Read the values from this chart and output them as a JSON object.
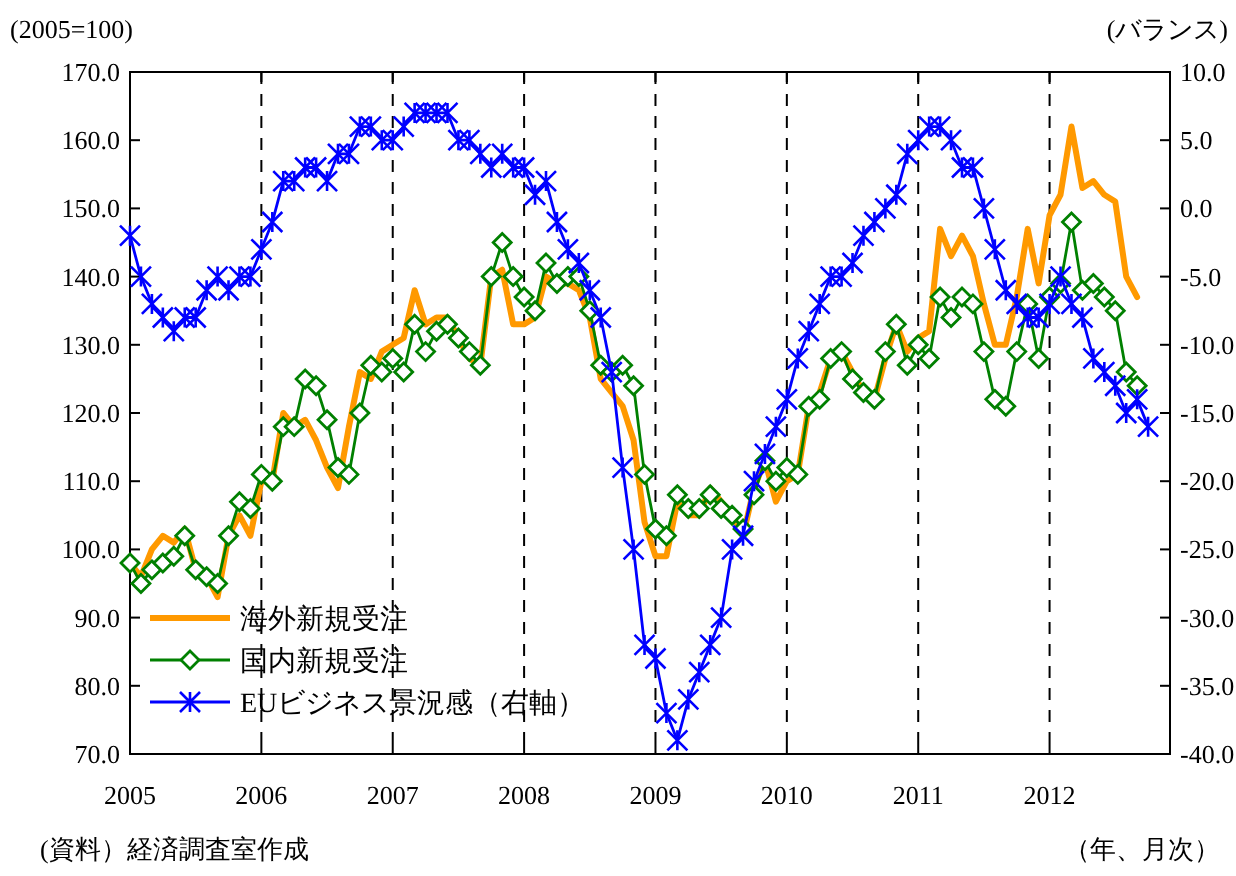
{
  "chart_data": {
    "type": "line",
    "ylabel": "(2005=100)",
    "y2label": "(バランス)",
    "xlabel": "（年、月次）",
    "annotations": [
      "(資料）経済調査室作成"
    ],
    "x": [
      "2005-01",
      "2005-02",
      "2005-03",
      "2005-04",
      "2005-05",
      "2005-06",
      "2005-07",
      "2005-08",
      "2005-09",
      "2005-10",
      "2005-11",
      "2005-12",
      "2006-01",
      "2006-02",
      "2006-03",
      "2006-04",
      "2006-05",
      "2006-06",
      "2006-07",
      "2006-08",
      "2006-09",
      "2006-10",
      "2006-11",
      "2006-12",
      "2007-01",
      "2007-02",
      "2007-03",
      "2007-04",
      "2007-05",
      "2007-06",
      "2007-07",
      "2007-08",
      "2007-09",
      "2007-10",
      "2007-11",
      "2007-12",
      "2008-01",
      "2008-02",
      "2008-03",
      "2008-04",
      "2008-05",
      "2008-06",
      "2008-07",
      "2008-08",
      "2008-09",
      "2008-10",
      "2008-11",
      "2008-12",
      "2009-01",
      "2009-02",
      "2009-03",
      "2009-04",
      "2009-05",
      "2009-06",
      "2009-07",
      "2009-08",
      "2009-09",
      "2009-10",
      "2009-11",
      "2009-12",
      "2010-01",
      "2010-02",
      "2010-03",
      "2010-04",
      "2010-05",
      "2010-06",
      "2010-07",
      "2010-08",
      "2010-09",
      "2010-10",
      "2010-11",
      "2010-12",
      "2011-01",
      "2011-02",
      "2011-03",
      "2011-04",
      "2011-05",
      "2011-06",
      "2011-07",
      "2011-08",
      "2011-09",
      "2011-10",
      "2011-11",
      "2011-12",
      "2012-01",
      "2012-02",
      "2012-03",
      "2012-04",
      "2012-05",
      "2012-06",
      "2012-07",
      "2012-08",
      "2012-09",
      "2012-10"
    ],
    "series": [
      {
        "name": "海外新規受注",
        "color": "#ff9900",
        "marker": "none",
        "values": [
          98,
          96,
          100,
          102,
          101,
          103,
          97,
          96,
          93,
          102,
          105,
          102,
          110,
          110,
          120,
          118,
          119,
          116,
          112,
          109,
          118,
          126,
          125,
          129,
          130,
          131,
          138,
          133,
          134,
          134,
          131,
          128,
          127,
          140,
          141,
          133,
          133,
          134,
          140,
          139,
          139,
          138,
          134,
          125,
          123,
          121,
          116,
          104,
          99,
          99,
          107,
          105,
          105,
          109,
          107,
          105,
          102,
          109,
          113,
          107,
          110,
          111,
          121,
          123,
          128,
          129,
          126,
          123,
          122,
          128,
          133,
          129,
          131,
          132,
          147,
          143,
          146,
          143,
          136,
          130,
          130,
          137,
          147,
          139,
          149,
          152,
          162,
          153,
          154,
          152,
          151,
          140,
          137,
          null
        ]
      },
      {
        "name": "国内新規受注",
        "color": "#008000",
        "marker": "diamond",
        "values": [
          98,
          95,
          97,
          98,
          99,
          102,
          97,
          96,
          95,
          102,
          107,
          106,
          111,
          110,
          118,
          118,
          125,
          124,
          119,
          112,
          111,
          120,
          127,
          126,
          128,
          126,
          133,
          129,
          132,
          133,
          131,
          129,
          127,
          140,
          145,
          140,
          137,
          135,
          142,
          139,
          140,
          140,
          135,
          127,
          126,
          127,
          124,
          111,
          103,
          102,
          108,
          106,
          106,
          108,
          106,
          105,
          103,
          108,
          113,
          110,
          112,
          111,
          121,
          122,
          128,
          129,
          125,
          123,
          122,
          129,
          133,
          127,
          130,
          128,
          137,
          134,
          137,
          136,
          129,
          122,
          121,
          129,
          136,
          128,
          137,
          139,
          148,
          138,
          139,
          137,
          135,
          126,
          124,
          null
        ]
      },
      {
        "name": "EUビジネス景況感（右軸）",
        "color": "#0000ff",
        "marker": "cross",
        "axis": "y2",
        "values": [
          -2,
          -5,
          -7,
          -8,
          -9,
          -8,
          -8,
          -6,
          -5,
          -6,
          -5,
          -5,
          -3,
          -1,
          2,
          2,
          3,
          3,
          2,
          4,
          4,
          6,
          6,
          5,
          5,
          6,
          7,
          7,
          7,
          7,
          5,
          5,
          4,
          3,
          4,
          3,
          3,
          1,
          2,
          -1,
          -3,
          -4,
          -6,
          -8,
          -12,
          -19,
          -25,
          -32,
          -33,
          -37,
          -39,
          -36,
          -34,
          -32,
          -30,
          -25,
          -24,
          -20,
          -18,
          -16,
          -14,
          -11,
          -9,
          -7,
          -5,
          -5,
          -4,
          -2,
          -1,
          0,
          1,
          4,
          5,
          6,
          6,
          5,
          3,
          3,
          0,
          -3,
          -6,
          -7,
          -8,
          -8,
          -7,
          -5,
          -7,
          -8,
          -11,
          -12,
          -13,
          -15,
          -14,
          -16
        ]
      }
    ],
    "xlim": [
      "2005-01",
      "2012-12"
    ],
    "xticks": [
      "2005",
      "2006",
      "2007",
      "2008",
      "2009",
      "2010",
      "2011",
      "2012"
    ],
    "ylim": [
      70,
      170
    ],
    "yticks": [
      {
        "value": 70,
        "label": "70.0"
      },
      {
        "value": 80,
        "label": "80.0"
      },
      {
        "value": 90,
        "label": "90.0"
      },
      {
        "value": 100,
        "label": "100.0"
      },
      {
        "value": 110,
        "label": "110.0"
      },
      {
        "value": 120,
        "label": "120.0"
      },
      {
        "value": 130,
        "label": "130.0"
      },
      {
        "value": 140,
        "label": "140.0"
      },
      {
        "value": 150,
        "label": "150.0"
      },
      {
        "value": 160,
        "label": "160.0"
      },
      {
        "value": 170,
        "label": "170.0"
      }
    ],
    "y2lim": [
      -40,
      10
    ],
    "y2ticks": [
      {
        "value": -40,
        "label": "-40.0"
      },
      {
        "value": -35,
        "label": "-35.0"
      },
      {
        "value": -30,
        "label": "-30.0"
      },
      {
        "value": -25,
        "label": "-25.0"
      },
      {
        "value": -20,
        "label": "-20.0"
      },
      {
        "value": -15,
        "label": "-15.0"
      },
      {
        "value": -10,
        "label": "-10.0"
      },
      {
        "value": -5,
        "label": "-5.0"
      },
      {
        "value": 0,
        "label": "0.0"
      },
      {
        "value": 5,
        "label": "5.0"
      },
      {
        "value": 10,
        "label": "10.0"
      }
    ],
    "grid": "x",
    "line_style": "solid",
    "legend": "bottom left"
  }
}
